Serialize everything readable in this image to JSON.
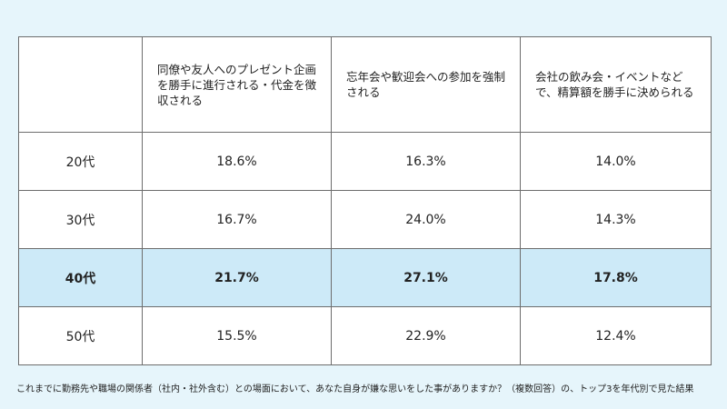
{
  "table": {
    "headers": [
      "",
      "同僚や友人へのプレゼント企画を勝手に進行される・代金を徴収される",
      "忘年会や歓迎会への参加を強制される",
      "会社の飲み会・イベントなどで、精算額を勝手に決められる"
    ],
    "rows": [
      {
        "age": "20代",
        "values": [
          "18.6%",
          "16.3%",
          "14.0%"
        ],
        "highlight": false
      },
      {
        "age": "30代",
        "values": [
          "16.7%",
          "24.0%",
          "14.3%"
        ],
        "highlight": false
      },
      {
        "age": "40代",
        "values": [
          "21.7%",
          "27.1%",
          "17.8%"
        ],
        "highlight": true
      },
      {
        "age": "50代",
        "values": [
          "15.5%",
          "22.9%",
          "12.4%"
        ],
        "highlight": false
      }
    ]
  },
  "footnote": "これまでに勤務先や職場の関係者（社内・社外含む）との場面において、あなた自身が嫌な思いをした事がありますか？（複数回答）の、トップ3を年代別で見た結果",
  "colors": {
    "background": "#e6f5fb",
    "highlight_row": "#cdeaf8",
    "border": "#6d6d6d"
  }
}
